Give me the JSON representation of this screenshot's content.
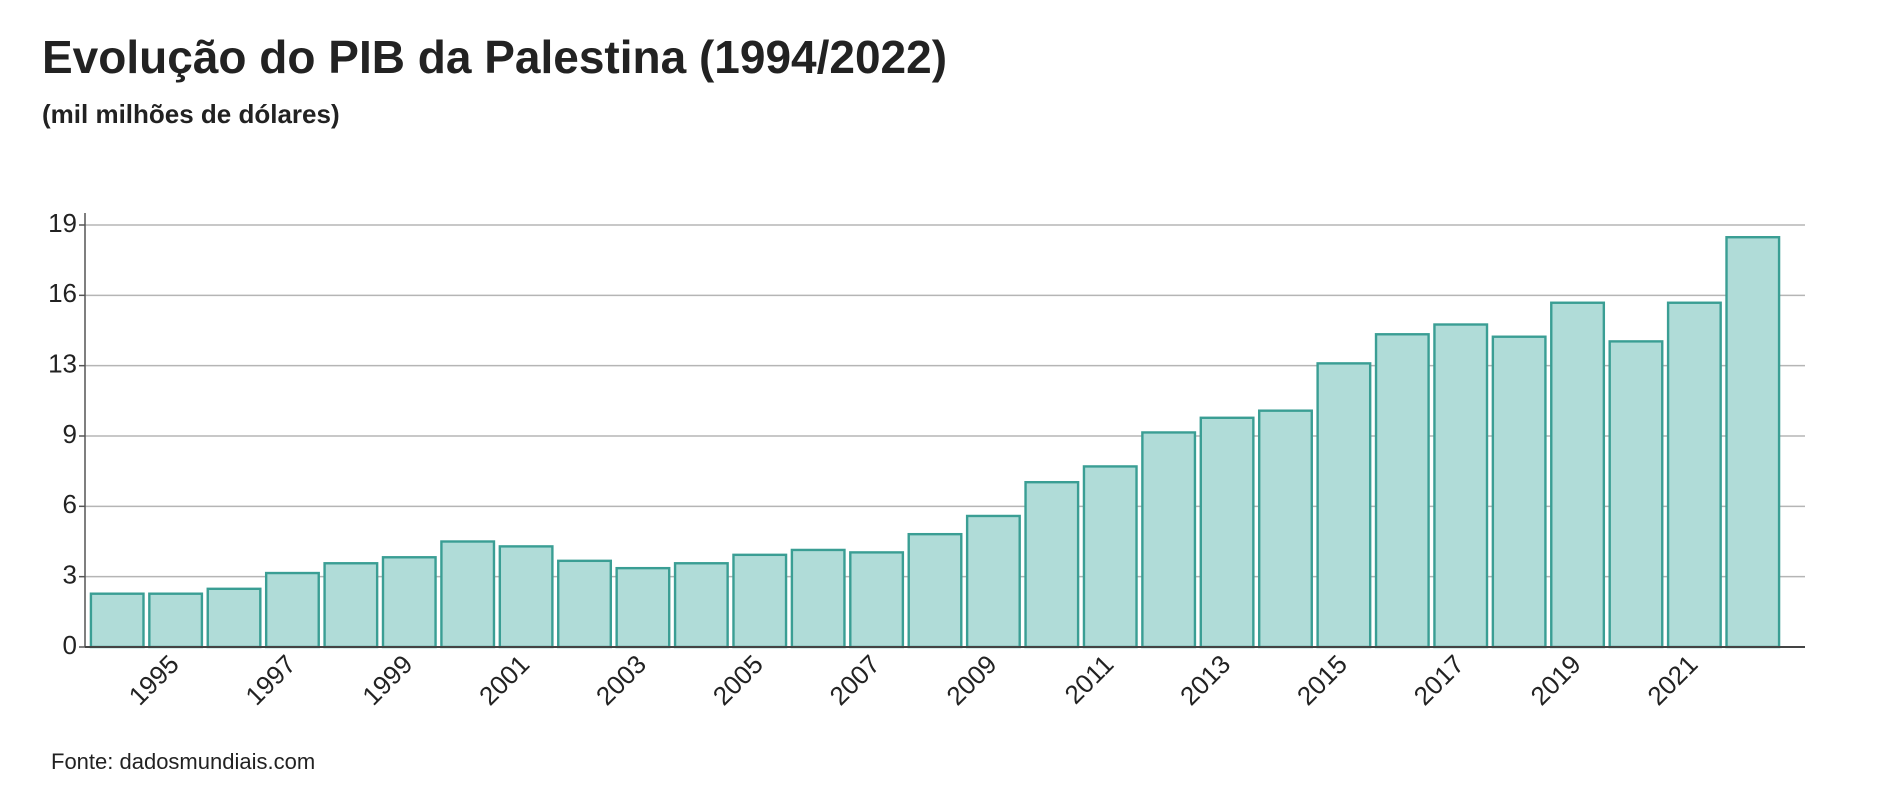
{
  "chart_data": {
    "type": "bar",
    "title": "Evolução do PIB da Palestina (1994/2022)",
    "subtitle": "(mil milhões de dólares)",
    "source": "Fonte: dadosmundiais.com",
    "categories": [
      null,
      "1995",
      null,
      "1997",
      null,
      "1999",
      null,
      "2001",
      null,
      "2003",
      null,
      "2005",
      null,
      "2007",
      null,
      "2009",
      null,
      "2011",
      null,
      "2013",
      null,
      "2015",
      null,
      "2017",
      null,
      "2019",
      null,
      "2021",
      null
    ],
    "values": [
      2.4,
      2.4,
      2.62,
      3.33,
      3.77,
      4.04,
      4.75,
      4.53,
      3.88,
      3.55,
      3.77,
      4.15,
      4.37,
      4.26,
      5.08,
      5.9,
      7.42,
      8.13,
      9.66,
      10.32,
      10.64,
      12.77,
      14.08,
      14.52,
      13.97,
      15.5,
      13.76,
      15.5,
      18.45
    ],
    "color": "#b0dcd8",
    "edge_color": "#3a9e94",
    "ylim": [
      0,
      19
    ],
    "yticks": [
      0,
      {
        "value": 3.1667,
        "label": "3"
      },
      {
        "value": 6.3333,
        "label": "6"
      },
      {
        "value": 9.5,
        "label": "9"
      },
      {
        "value": 12.6667,
        "label": "13"
      },
      {
        "value": 15.8333,
        "label": "16"
      },
      19
    ],
    "grid": true
  }
}
